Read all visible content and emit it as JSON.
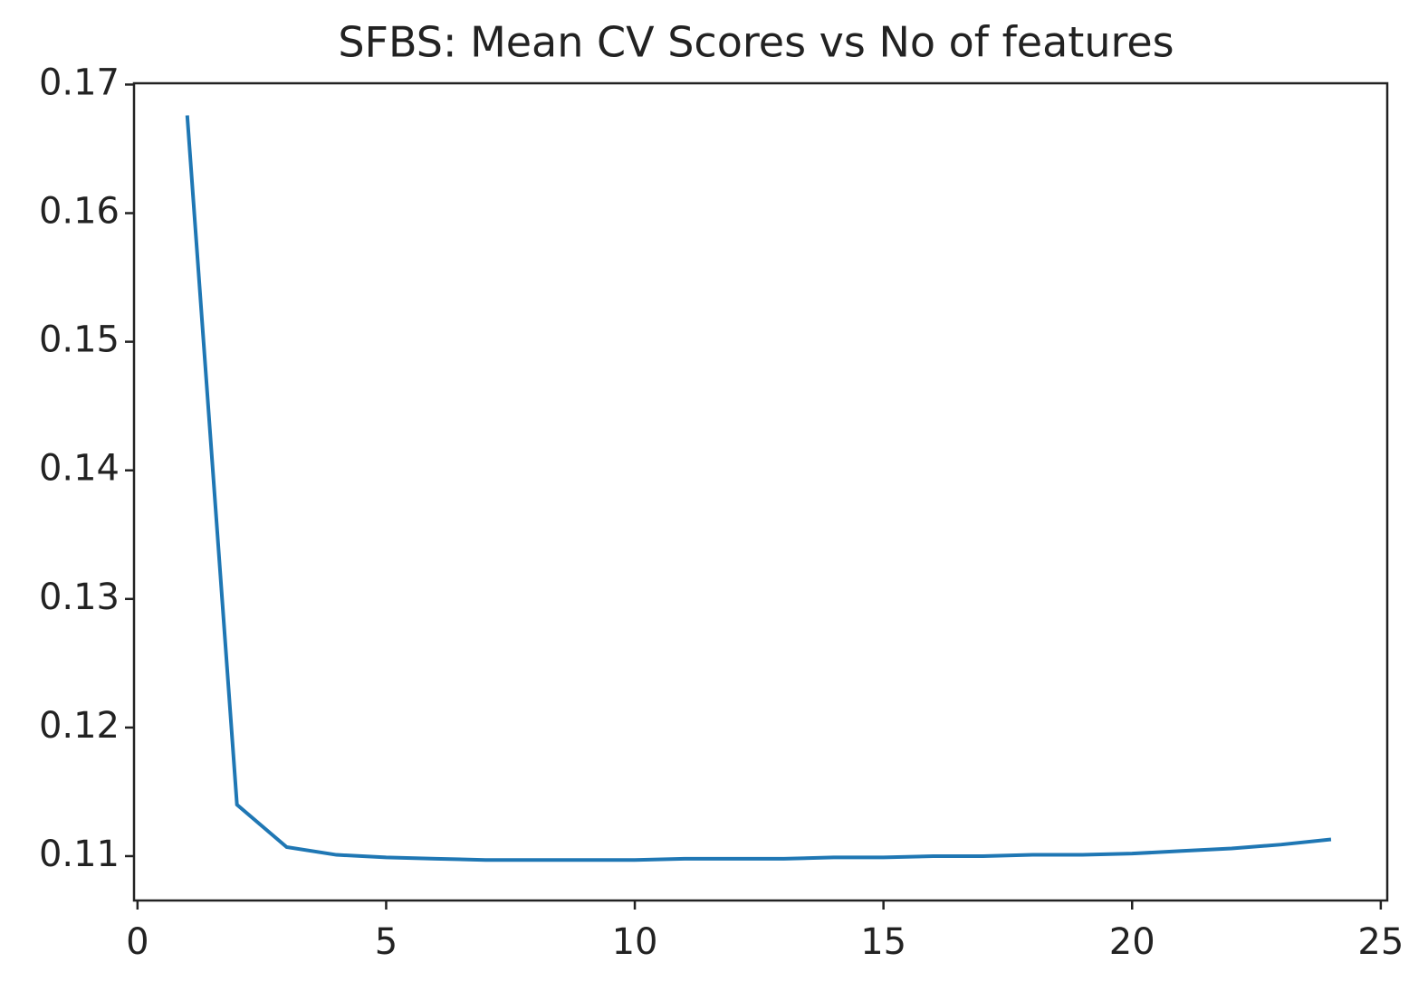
{
  "chart_data": {
    "type": "line",
    "title": "SFBS: Mean CV Scores vs No of features",
    "x": [
      1,
      2,
      3,
      4,
      5,
      6,
      7,
      8,
      9,
      10,
      11,
      12,
      13,
      14,
      15,
      16,
      17,
      18,
      19,
      20,
      21,
      22,
      23,
      24
    ],
    "series": [
      {
        "color": "#1f77b4",
        "values": [
          0.1676,
          0.114,
          0.1107,
          0.1101,
          0.1099,
          0.1098,
          0.1097,
          0.1097,
          0.1097,
          0.1097,
          0.1098,
          0.1098,
          0.1098,
          0.1099,
          0.1099,
          0.11,
          0.11,
          0.1101,
          0.1101,
          0.1102,
          0.1104,
          0.1106,
          0.1109,
          0.1113
        ]
      }
    ],
    "xlim": [
      -0.07,
      25.13
    ],
    "xticks": [
      0,
      5,
      10,
      15,
      20,
      25
    ],
    "ylim": [
      0.10655,
      0.1701
    ],
    "yticks": [
      0.11,
      0.12,
      0.13,
      0.14,
      0.15,
      0.16,
      0.17
    ]
  }
}
